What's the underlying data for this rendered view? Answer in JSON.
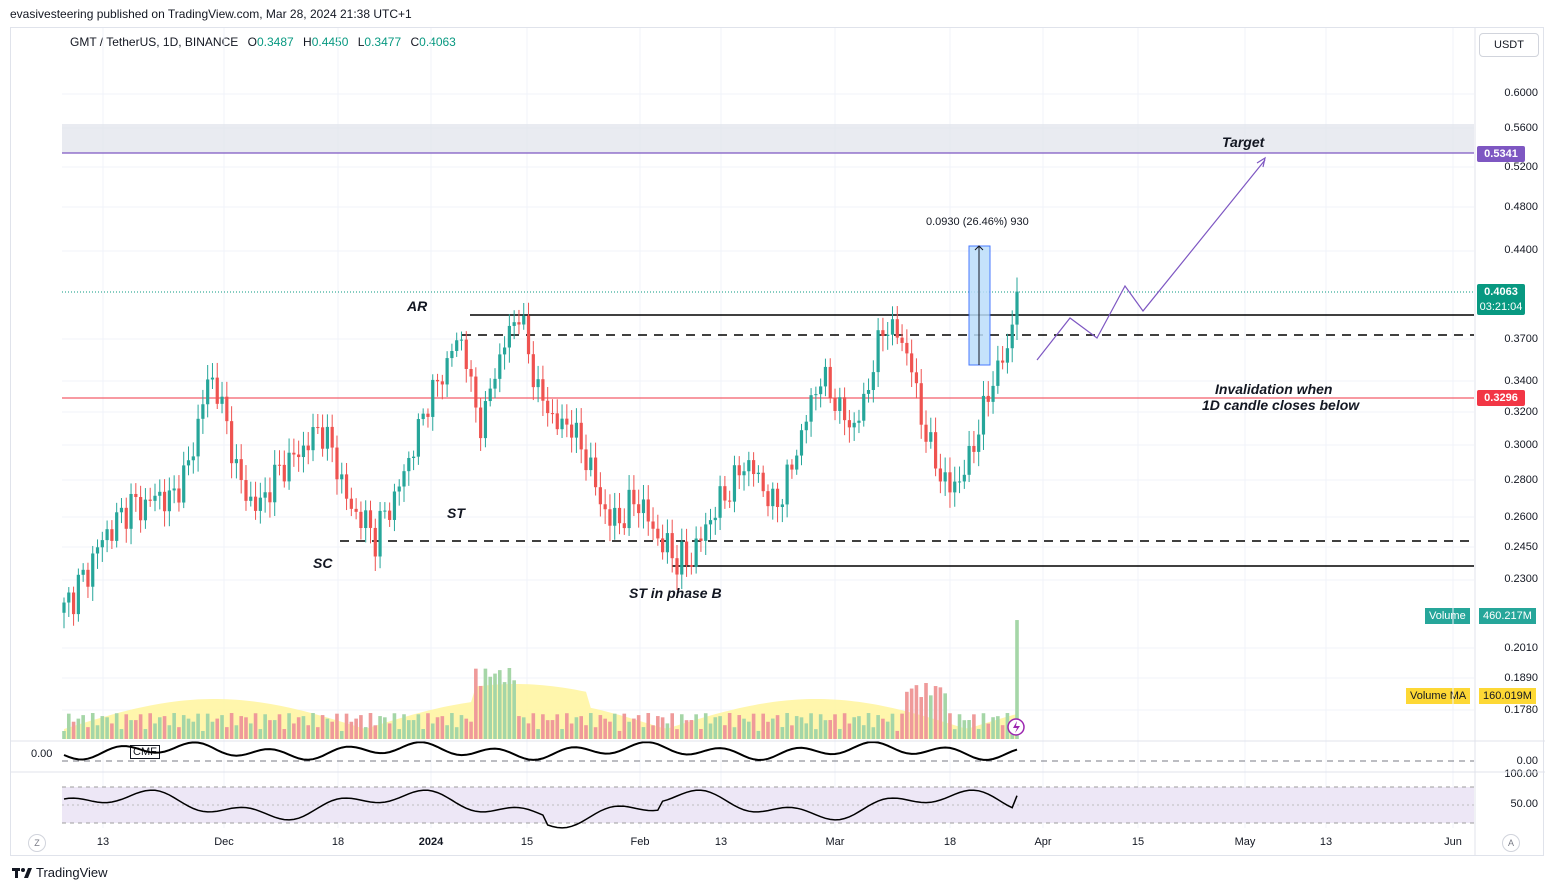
{
  "publisher": "evasivesteering published on TradingView.com, Mar 28, 2024 21:38 UTC+1",
  "symbol": {
    "name": "GMT / TetherUS, 1D, BINANCE",
    "o_label": "O",
    "o": "0.3487",
    "h_label": "H",
    "h": "0.4450",
    "l_label": "L",
    "l": "0.3477",
    "c_label": "C",
    "c": "0.4063"
  },
  "currency_button": "USDT",
  "price_axis": [
    "0.6000",
    "0.5600",
    "0.5200",
    "0.4800",
    "0.4400",
    "0.3700",
    "0.3400",
    "0.3200",
    "0.3000",
    "0.2800",
    "0.2600",
    "0.2450",
    "0.2300",
    "0.2010",
    "0.1890",
    "0.1780"
  ],
  "price_labels": {
    "target_line": "0.5341",
    "last_price": "0.4063",
    "countdown": "03:21:04",
    "invalidation": "0.3296"
  },
  "volume_labels": {
    "volume_name": "Volume",
    "volume_value": "460.217M",
    "ma_name": "Volume MA",
    "ma_value": "160.019M"
  },
  "cmf": {
    "label": "CMF",
    "left_value": "0.00",
    "right_value": "0.00"
  },
  "rsi_axis": [
    "100.00",
    "50.00"
  ],
  "measure_label": "0.0930 (26.46%) 930",
  "annotations": {
    "target": "Target",
    "invalidation_line1": "Invalidation when",
    "invalidation_line2": "1D candle closes below",
    "ar": "AR",
    "st": "ST",
    "sc": "SC",
    "st_phase_b": "ST in phase B"
  },
  "time_axis": [
    "13",
    "Dec",
    "18",
    "2024",
    "15",
    "Feb",
    "13",
    "Mar",
    "18",
    "Apr",
    "15",
    "May",
    "13",
    "Jun"
  ],
  "axis_buttons": {
    "left": "Z",
    "right": "A"
  },
  "footer_brand": "TradingView",
  "colors": {
    "up": "#26a69a",
    "down": "#ef5350",
    "target": "#7e57c2",
    "invalidation": "#f23645",
    "volume_ma": "#fdd835"
  },
  "chart_data": {
    "type": "candlestick",
    "title": "GMT / TetherUS, 1D, BINANCE",
    "ylim": [
      0.16,
      0.62
    ],
    "y_scale": "log",
    "levels": {
      "target": 0.5341,
      "invalidation": 0.3296,
      "resistance_solid": 0.385,
      "resistance_dashed": 0.375,
      "support_dashed": 0.247,
      "support_solid": 0.236
    },
    "close_path": [
      0.216,
      0.225,
      0.23,
      0.24,
      0.25,
      0.255,
      0.262,
      0.268,
      0.265,
      0.27,
      0.272,
      0.268,
      0.28,
      0.29,
      0.32,
      0.345,
      0.33,
      0.305,
      0.28,
      0.27,
      0.265,
      0.275,
      0.285,
      0.29,
      0.295,
      0.3,
      0.31,
      0.305,
      0.29,
      0.27,
      0.262,
      0.258,
      0.25,
      0.262,
      0.27,
      0.285,
      0.3,
      0.32,
      0.335,
      0.345,
      0.365,
      0.37,
      0.33,
      0.31,
      0.34,
      0.36,
      0.38,
      0.39,
      0.35,
      0.33,
      0.32,
      0.31,
      0.315,
      0.3,
      0.29,
      0.27,
      0.26,
      0.258,
      0.265,
      0.27,
      0.26,
      0.25,
      0.245,
      0.24,
      0.238,
      0.245,
      0.255,
      0.265,
      0.272,
      0.28,
      0.29,
      0.285,
      0.275,
      0.265,
      0.275,
      0.29,
      0.31,
      0.33,
      0.345,
      0.33,
      0.32,
      0.31,
      0.32,
      0.345,
      0.375,
      0.38,
      0.37,
      0.355,
      0.32,
      0.3,
      0.285,
      0.275,
      0.28,
      0.29,
      0.31,
      0.33,
      0.35,
      0.36,
      0.4063
    ]
  }
}
